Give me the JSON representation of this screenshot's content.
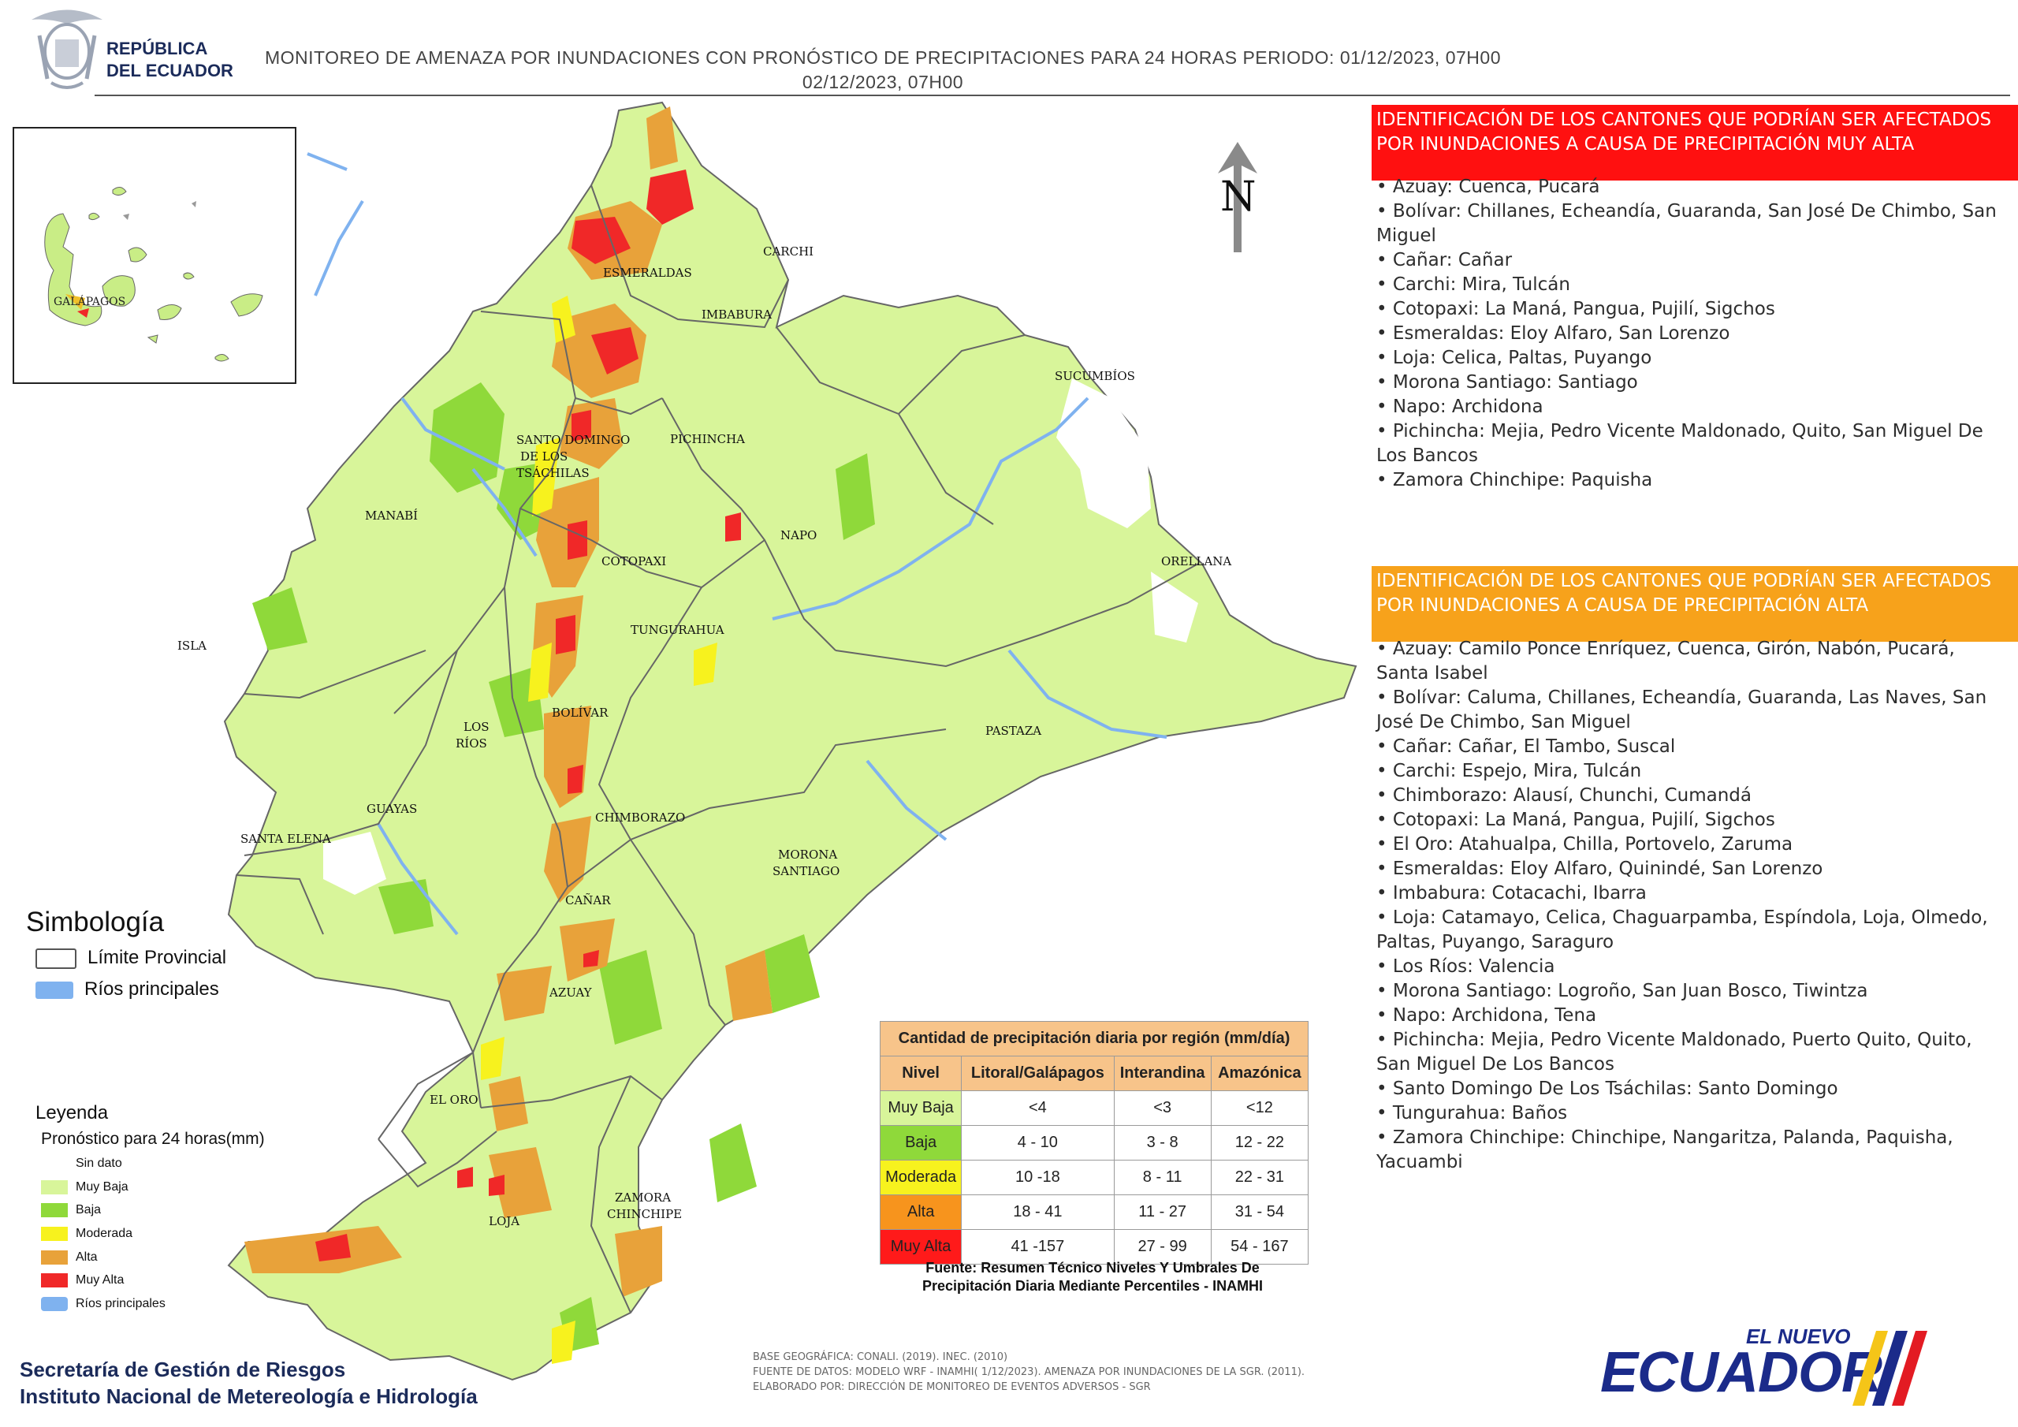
{
  "header": {
    "logo_line1": "REPÚBLICA",
    "logo_line2": "DEL ECUADOR",
    "title_line1": "MONITOREO DE AMENAZA POR INUNDACIONES  CON PRONÓSTICO DE  PRECIPITACIONES PARA 24 HORAS  PERIODO: 01/12/2023, 07H00",
    "title_line2": "02/12/2023, 07H00"
  },
  "map": {
    "north_label": "N",
    "inset_label": "GALÁPAGOS",
    "province_labels": [
      "ESMERALDAS",
      "CARCHI",
      "IMBABURA",
      "SUCUMBÍOS",
      "SANTO DOMINGO",
      "DE LOS",
      "TSÁCHILAS",
      "PICHINCHA",
      "MANABÍ",
      "NAPO",
      "ORELLANA",
      "COTOPAXI",
      "TUNGURAHUA",
      "ISLA",
      "BOLÍVAR",
      "LOS",
      "RÍOS",
      "PASTAZA",
      "GUAYAS",
      "SANTA ELENA",
      "CHIMBORAZO",
      "MORONA",
      "SANTIAGO",
      "CAÑAR",
      "AZUAY",
      "EL ORO",
      "LOJA",
      "ZAMORA",
      "CHINCHIPE"
    ]
  },
  "section_muy_alta": {
    "heading": "IDENTIFICACIÓN DE LOS CANTONES QUE PODRÍAN SER AFECTADOS POR INUNDACIONES  A CAUSA DE PRECIPITACIÓN MUY ALTA",
    "color": "#ff1010",
    "items": [
      "• Azuay: Cuenca, Pucará",
      "• Bolívar: Chillanes, Echeandía, Guaranda, San José De Chimbo, San Miguel",
      "• Cañar: Cañar",
      "• Carchi: Mira, Tulcán",
      "• Cotopaxi: La Maná, Pangua, Pujilí, Sigchos",
      "• Esmeraldas: Eloy Alfaro, San Lorenzo",
      "• Loja: Celica, Paltas, Puyango",
      "• Morona Santiago: Santiago",
      "• Napo: Archidona",
      "• Pichincha: Mejia, Pedro Vicente Maldonado, Quito, San Miguel De Los Bancos",
      "• Zamora Chinchipe: Paquisha"
    ]
  },
  "section_alta": {
    "heading": "IDENTIFICACIÓN DE LOS CANTONES QUE  PODRÍAN SER AFECTADOS POR INUNDACIONES  A CAUSA DE PRECIPITACIÓN  ALTA",
    "color": "#f7a21b",
    "items": [
      "• Azuay: Camilo Ponce Enríquez, Cuenca, Girón, Nabón, Pucará, Santa Isabel",
      "• Bolívar: Caluma, Chillanes, Echeandía, Guaranda, Las Naves, San José De Chimbo, San Miguel",
      "• Cañar: Cañar, El Tambo, Suscal",
      "• Carchi: Espejo, Mira, Tulcán",
      "• Chimborazo: Alausí, Chunchi, Cumandá",
      "• Cotopaxi: La Maná, Pangua, Pujilí, Sigchos",
      "• El Oro: Atahualpa, Chilla, Portovelo, Zaruma",
      "• Esmeraldas: Eloy Alfaro, Quinindé, San Lorenzo",
      "• Imbabura: Cotacachi, Ibarra",
      "• Loja: Catamayo, Celica, Chaguarpamba, Espíndola, Loja, Olmedo, Paltas, Puyango, Saraguro",
      "• Los Ríos: Valencia",
      "• Morona Santiago: Logroño, San Juan Bosco, Tiwintza",
      "• Napo: Archidona, Tena",
      "• Pichincha: Mejia, Pedro Vicente Maldonado, Puerto Quito, Quito, San Miguel De Los Bancos",
      "• Santo Domingo De Los Tsáchilas: Santo Domingo",
      "• Tungurahua: Baños",
      "• Zamora Chinchipe: Chinchipe, Nangaritza, Palanda, Paquisha, Yacuambi"
    ]
  },
  "simbologia": {
    "title": "Simbología",
    "items": [
      {
        "label": "Límite Provincial",
        "color": "#ffffff"
      },
      {
        "label": "Ríos principales",
        "color": "#7fb2ef"
      }
    ]
  },
  "leyenda": {
    "title": "Leyenda",
    "subtitle": "Pronóstico para 24 horas(mm)",
    "items": [
      {
        "label": "Sin dato",
        "color": "#ffffff"
      },
      {
        "label": "Muy Baja",
        "color": "#d8f59a"
      },
      {
        "label": "Baja",
        "color": "#8fd93a"
      },
      {
        "label": "Moderada",
        "color": "#f7f21e"
      },
      {
        "label": "Alta",
        "color": "#e8a23a"
      },
      {
        "label": "Muy Alta",
        "color": "#f02828"
      },
      {
        "label": "Ríos principales",
        "color": "#7fb2ef"
      }
    ]
  },
  "precip_table": {
    "title": "Cantidad de precipitación diaria por región (mm/día)",
    "headers": [
      "Nivel",
      "Litoral/Galápagos",
      "Interandina",
      "Amazónica"
    ],
    "rows": [
      {
        "nivel": "Muy Baja",
        "color": "#d8f59a",
        "litoral": "<4",
        "interandina": "<3",
        "amazonica": "<12"
      },
      {
        "nivel": "Baja",
        "color": "#8fd93a",
        "litoral": "4 - 10",
        "interandina": "3 - 8",
        "amazonica": "12 - 22"
      },
      {
        "nivel": "Moderada",
        "color": "#f7f21e",
        "litoral": "10 -18",
        "interandina": "8 - 11",
        "amazonica": "22 - 31"
      },
      {
        "nivel": "Alta",
        "color": "#f7941d",
        "litoral": "18 - 41",
        "interandina": "11 - 27",
        "amazonica": "31 - 54"
      },
      {
        "nivel": "Muy Alta",
        "color": "#ff1a1a",
        "litoral": "41 -157",
        "interandina": "27 - 99",
        "amazonica": "54 - 167"
      }
    ],
    "source": "Fuente: Resumen Técnico Niveles Y Umbrales De Precipitación Diaria Mediante Percentiles - INAMHI"
  },
  "footer": {
    "org_line1": "Secretaría de Gestión de Riesgos",
    "org_line2": "Instituto Nacional de Metereología e Hidrología",
    "base_line1": "BASE GEOGRÁFICA: CONALI. (2019). INEC. (2010)",
    "base_line2": "FUENTE DE DATOS: MODELO WRF - INAMHI( 1/12/2023).  AMENAZA POR INUNDACIONES DE LA SGR. (2011).",
    "base_line3": "ELABORADO POR: DIRECCIÓN DE MONITOREO DE EVENTOS ADVERSOS - SGR",
    "brand_small": "EL NUEVO",
    "brand_big": "ECUADOR"
  }
}
